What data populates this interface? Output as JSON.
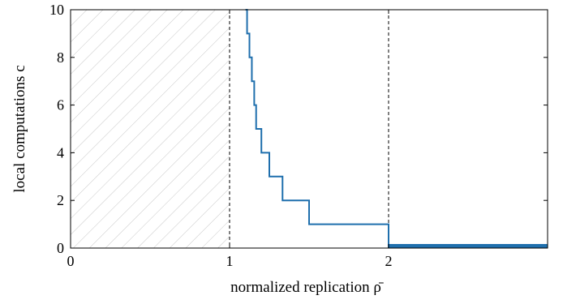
{
  "chart_data": {
    "type": "line",
    "xlabel": "normalized replication ρ̄",
    "ylabel": "local computations c",
    "xlim": [
      0,
      3
    ],
    "ylim": [
      0,
      10
    ],
    "x_ticks": [
      "0",
      "1",
      "2"
    ],
    "x_tick_values": [
      0,
      1,
      2
    ],
    "y_ticks": [
      "0",
      "2",
      "4",
      "6",
      "8",
      "10"
    ],
    "y_tick_values": [
      0,
      2,
      4,
      6,
      8,
      10
    ],
    "grid": false,
    "legend": "none",
    "infeasible_region": {
      "x_from": 0,
      "x_to": 1,
      "style": "hatched"
    },
    "reference_lines_x": [
      1,
      2
    ],
    "series": [
      {
        "color": "#1f6fad",
        "x": [
          1.1,
          1.11,
          1.11,
          1.125,
          1.125,
          1.14,
          1.14,
          1.155,
          1.155,
          1.167,
          1.167,
          1.2,
          1.2,
          1.25,
          1.25,
          1.333,
          1.333,
          1.5,
          1.5,
          2.0,
          2.0,
          3.0
        ],
        "y": [
          10,
          10,
          9,
          9,
          8,
          8,
          7,
          7,
          6,
          6,
          5,
          5,
          4,
          4,
          3,
          3,
          2,
          2,
          1,
          1,
          0.05,
          0.05
        ]
      }
    ]
  }
}
